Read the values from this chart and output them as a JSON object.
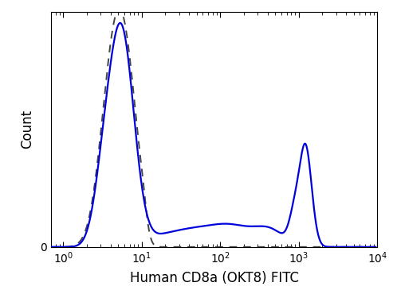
{
  "xlabel": "Human CD8a (OKT8) FITC",
  "ylabel": "Count",
  "xlabel_fontsize": 12,
  "ylabel_fontsize": 12,
  "xlim": [
    0.7,
    10000
  ],
  "ylim": [
    0,
    1.05
  ],
  "blue_color": "#0000dd",
  "dashed_color": "#444444",
  "bg_color": "#ffffff",
  "linewidth_blue": 1.6,
  "linewidth_dash": 1.4
}
